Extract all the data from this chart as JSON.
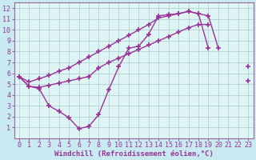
{
  "background_color": "#c8eaf0",
  "plot_bg_color": "#dff4f4",
  "line_color": "#993399",
  "marker": "+",
  "markersize": 4,
  "markeredgewidth": 1.2,
  "linewidth": 1.0,
  "xlabel": "Windchill (Refroidissement éolien,°C)",
  "xlabel_fontsize": 6.5,
  "tick_fontsize": 6,
  "tick_color": "#993399",
  "xlabel_color": "#993399",
  "xlim": [
    -0.5,
    23.5
  ],
  "ylim": [
    0,
    12.5
  ],
  "xticks": [
    0,
    1,
    2,
    3,
    4,
    5,
    6,
    7,
    8,
    9,
    10,
    11,
    12,
    13,
    14,
    15,
    16,
    17,
    18,
    19,
    20,
    21,
    22,
    23
  ],
  "yticks": [
    1,
    2,
    3,
    4,
    5,
    6,
    7,
    8,
    9,
    10,
    11,
    12
  ],
  "grid_color": "#aacccc",
  "series": [
    {
      "x": [
        0,
        1,
        2,
        3,
        4,
        5,
        6,
        7,
        8,
        9,
        10,
        11,
        12,
        13,
        14,
        15,
        16,
        17,
        18,
        19,
        20,
        21,
        22,
        23
      ],
      "y": [
        5.7,
        4.8,
        4.6,
        3.0,
        2.5,
        1.9,
        0.9,
        1.1,
        2.2,
        4.5,
        6.6,
        8.3,
        8.5,
        9.6,
        11.3,
        11.4,
        11.5,
        11.7,
        11.5,
        8.3,
        null,
        null,
        null,
        null
      ]
    },
    {
      "x": [
        0,
        1,
        2,
        3,
        4,
        5,
        6,
        7,
        8,
        9,
        10,
        11,
        12,
        13,
        14,
        15,
        16,
        17,
        18,
        19,
        20,
        21,
        22,
        23
      ],
      "y": [
        5.7,
        4.8,
        4.7,
        4.9,
        5.1,
        5.3,
        5.5,
        5.7,
        6.5,
        7.0,
        7.4,
        7.8,
        8.2,
        8.6,
        9.0,
        9.4,
        9.8,
        10.2,
        10.5,
        10.5,
        null,
        null,
        null,
        5.3
      ]
    },
    {
      "x": [
        0,
        1,
        2,
        3,
        4,
        5,
        6,
        7,
        8,
        9,
        10,
        11,
        12,
        13,
        14,
        15,
        16,
        17,
        18,
        19,
        20,
        21,
        22,
        23
      ],
      "y": [
        5.7,
        5.2,
        5.5,
        5.8,
        6.2,
        6.5,
        7.0,
        7.5,
        8.0,
        8.5,
        9.0,
        9.5,
        10.0,
        10.5,
        11.1,
        11.3,
        11.5,
        11.7,
        11.5,
        11.3,
        8.3,
        null,
        null,
        6.6
      ]
    }
  ]
}
